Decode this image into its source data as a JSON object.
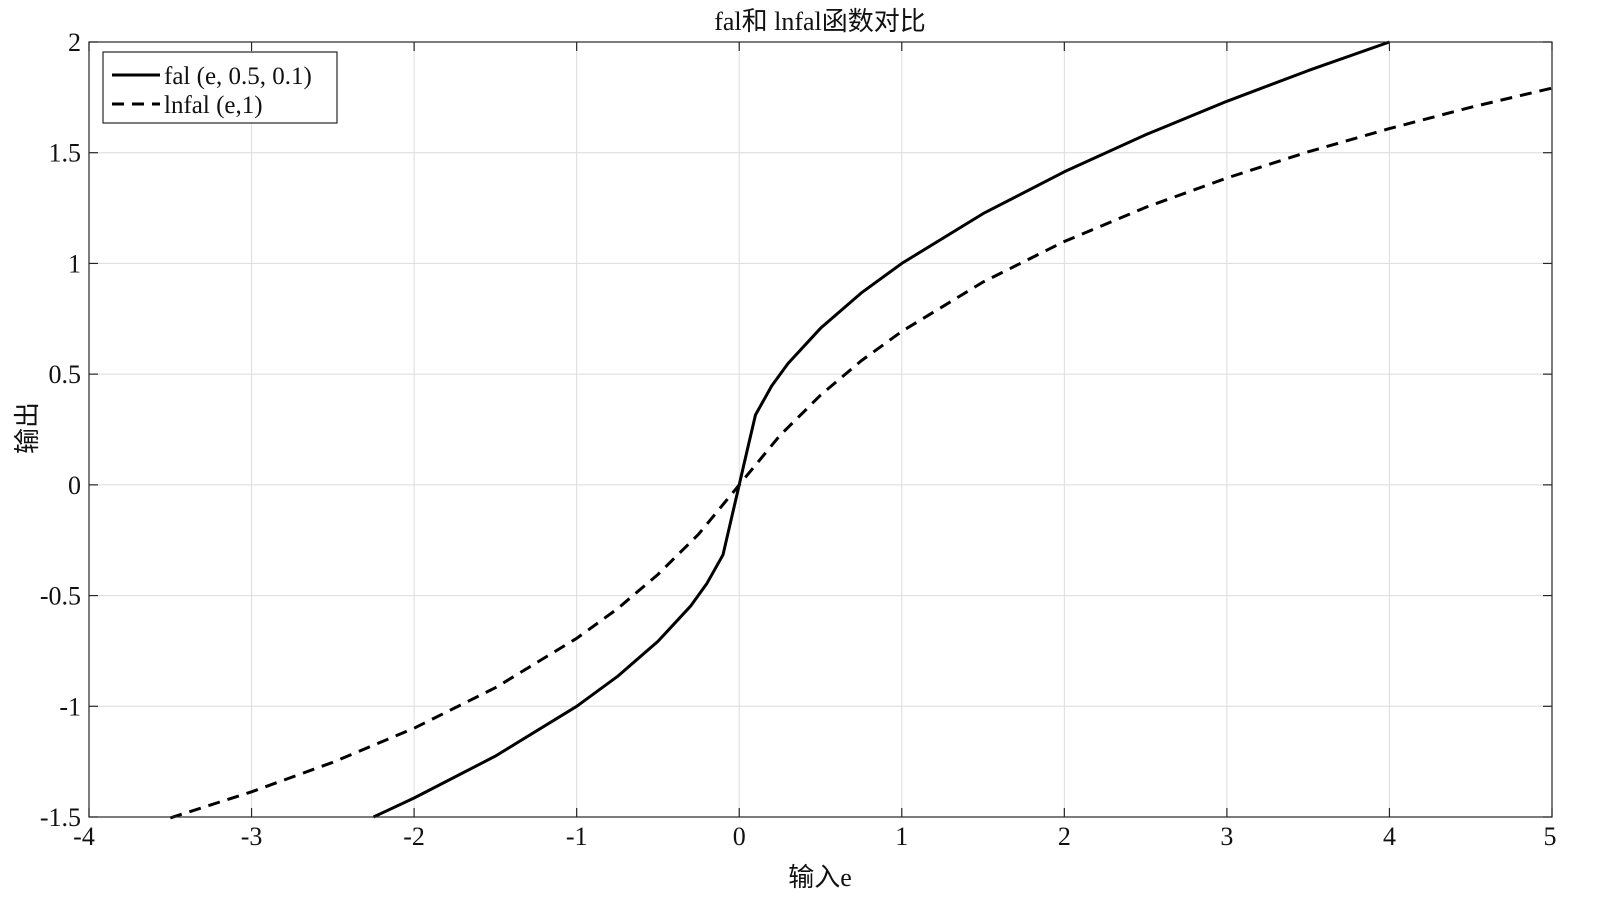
{
  "chart_data": {
    "type": "line",
    "title": "fal和 lnfal函数对比",
    "xlabel": "输入e",
    "ylabel": "输出",
    "xlim": [
      -4,
      5
    ],
    "ylim": [
      -1.5,
      2
    ],
    "xticks": [
      -4,
      -3,
      -2,
      -1,
      0,
      1,
      2,
      3,
      4,
      5
    ],
    "xtick_labels": [
      "-4",
      "-3",
      "-2",
      "-1",
      "0",
      "1",
      "2",
      "3",
      "4",
      "5"
    ],
    "yticks": [
      -1.5,
      -1,
      -0.5,
      0,
      0.5,
      1,
      1.5,
      2
    ],
    "ytick_labels": [
      "-1.5",
      "-1",
      "-0.5",
      "0",
      "0.5",
      "1",
      "1.5",
      "2"
    ],
    "grid": true,
    "legend_position": "top-left",
    "series": [
      {
        "name": "fal (e, 0.5, 0.1)",
        "style": "solid",
        "color": "#000000",
        "x": [
          -2.25,
          -2,
          -1.5,
          -1,
          -0.75,
          -0.5,
          -0.3,
          -0.2,
          -0.1,
          -0.05,
          0,
          0.05,
          0.1,
          0.2,
          0.3,
          0.5,
          0.75,
          1,
          1.5,
          2,
          2.5,
          3,
          3.5,
          4
        ],
        "y": [
          -1.5,
          -1.414,
          -1.225,
          -1.0,
          -0.866,
          -0.707,
          -0.548,
          -0.447,
          -0.316,
          -0.158,
          0,
          0.158,
          0.316,
          0.447,
          0.548,
          0.707,
          0.866,
          1.0,
          1.225,
          1.414,
          1.581,
          1.732,
          1.871,
          2.0
        ]
      },
      {
        "name": "lnfal (e,1)",
        "style": "dashed",
        "color": "#000000",
        "x": [
          -3.5,
          -3,
          -2.5,
          -2,
          -1.5,
          -1,
          -0.75,
          -0.5,
          -0.25,
          0,
          0.25,
          0.5,
          0.75,
          1,
          1.5,
          2,
          2.5,
          3,
          3.5,
          4,
          4.5,
          5
        ],
        "y": [
          -1.504,
          -1.386,
          -1.253,
          -1.099,
          -0.916,
          -0.693,
          -0.56,
          -0.405,
          -0.223,
          0,
          0.223,
          0.405,
          0.56,
          0.693,
          0.916,
          1.099,
          1.253,
          1.386,
          1.504,
          1.609,
          1.705,
          1.792
        ]
      }
    ]
  }
}
